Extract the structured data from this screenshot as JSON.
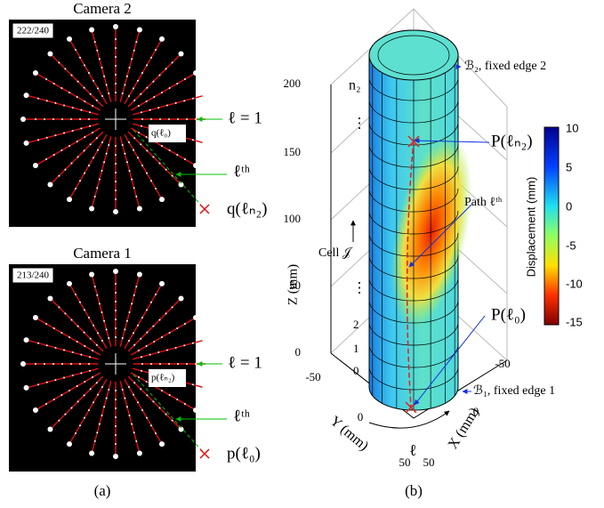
{
  "panel_a": {
    "label": "(a)",
    "cameras": [
      {
        "title": "Camera 2",
        "counter": "222/240",
        "labels": [
          "ℓ = 1",
          "q(ℓ₀)",
          "ℓᵗʰ",
          "q(ℓₙ₂)"
        ]
      },
      {
        "title": "Camera 1",
        "counter": "213/240",
        "labels": [
          "ℓ = 1",
          "p(ℓₙ₂)",
          "ℓᵗʰ",
          "p(ℓ₀)"
        ]
      }
    ]
  },
  "panel_b": {
    "label": "(b)",
    "z_label": "Z (mm)",
    "y_label": "Y (mm)",
    "x_label": "X (mm)",
    "z_ticks": [
      0,
      50,
      100,
      150,
      200
    ],
    "y_ticks": [
      -50,
      0,
      50
    ],
    "x_ticks": [
      -50,
      0,
      50
    ],
    "colorbar_label": "Displacement (mm)",
    "colorbar_ticks": [
      10,
      5,
      0,
      -5,
      -10,
      -15
    ],
    "annotations": {
      "n2": "n₂",
      "dots_top": "⋮",
      "edge2": "ℬ₂, fixed edge 2",
      "p_n2": "P(ℓₙ₂)",
      "path": "Path ℓᵗʰ",
      "cell": "Cell 𝒥",
      "p_0": "P(ℓ₀)",
      "edge1": "ℬ₁, fixed edge 1",
      "ell": "ℓ",
      "dots_mid": "⋮",
      "row2": "2",
      "row1": "1",
      "row0": "0"
    }
  }
}
